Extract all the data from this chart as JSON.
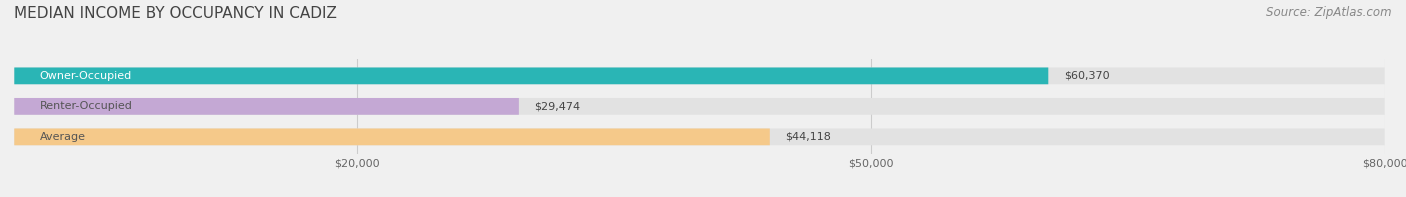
{
  "title": "MEDIAN INCOME BY OCCUPANCY IN CADIZ",
  "source": "Source: ZipAtlas.com",
  "categories": [
    "Owner-Occupied",
    "Renter-Occupied",
    "Average"
  ],
  "values": [
    60370,
    29474,
    44118
  ],
  "bar_colors": [
    "#2ab5b5",
    "#c4a8d4",
    "#f5c98a"
  ],
  "label_colors": [
    "#ffffff",
    "#555555",
    "#555555"
  ],
  "value_labels": [
    "$60,370",
    "$29,474",
    "$44,118"
  ],
  "xlim": [
    0,
    80000
  ],
  "xticks": [
    20000,
    50000,
    80000
  ],
  "xtick_labels": [
    "$20,000",
    "$50,000",
    "$80,000"
  ],
  "background_color": "#f0f0f0",
  "bar_background_color": "#e2e2e2",
  "title_fontsize": 11,
  "source_fontsize": 8.5,
  "label_fontsize": 8,
  "bar_height": 0.55,
  "fig_width": 14.06,
  "fig_height": 1.97
}
